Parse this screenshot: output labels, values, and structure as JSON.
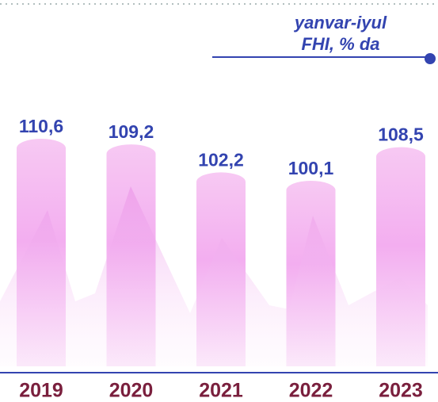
{
  "chart_data": {
    "type": "bar",
    "title": "yanvar-iyul",
    "subtitle": "FHI, % da",
    "categories": [
      "2019",
      "2020",
      "2021",
      "2022",
      "2023"
    ],
    "values": [
      110.6,
      109.2,
      102.2,
      100.1,
      108.5
    ],
    "value_labels": [
      "110,6",
      "109,2",
      "102,2",
      "100,1",
      "108,5"
    ],
    "color": "#f2a6ee"
  }
}
